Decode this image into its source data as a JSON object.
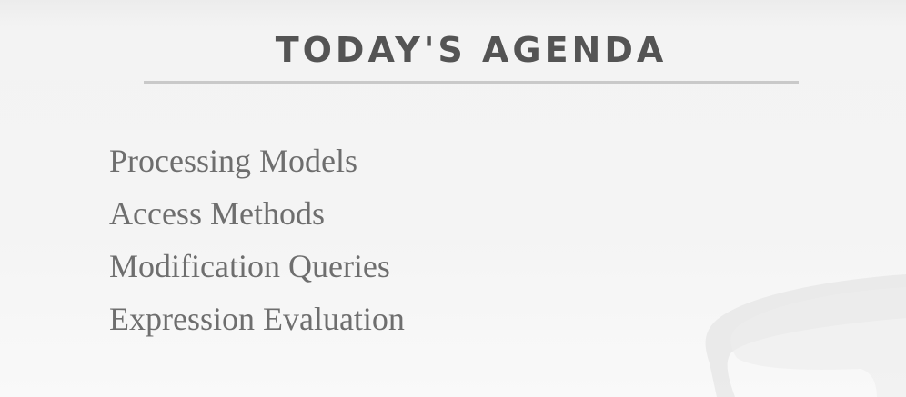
{
  "slide": {
    "title": "TODAY'S AGENDA",
    "agenda_items": [
      "Processing Models",
      "Access Methods",
      "Modification Queries",
      "Expression Evaluation"
    ]
  },
  "colors": {
    "title": "#545454",
    "rule": "#c9c9c9",
    "body_text": "#6e6e6e",
    "background": "#f4f4f4",
    "decoration": "#e8e8e8"
  }
}
